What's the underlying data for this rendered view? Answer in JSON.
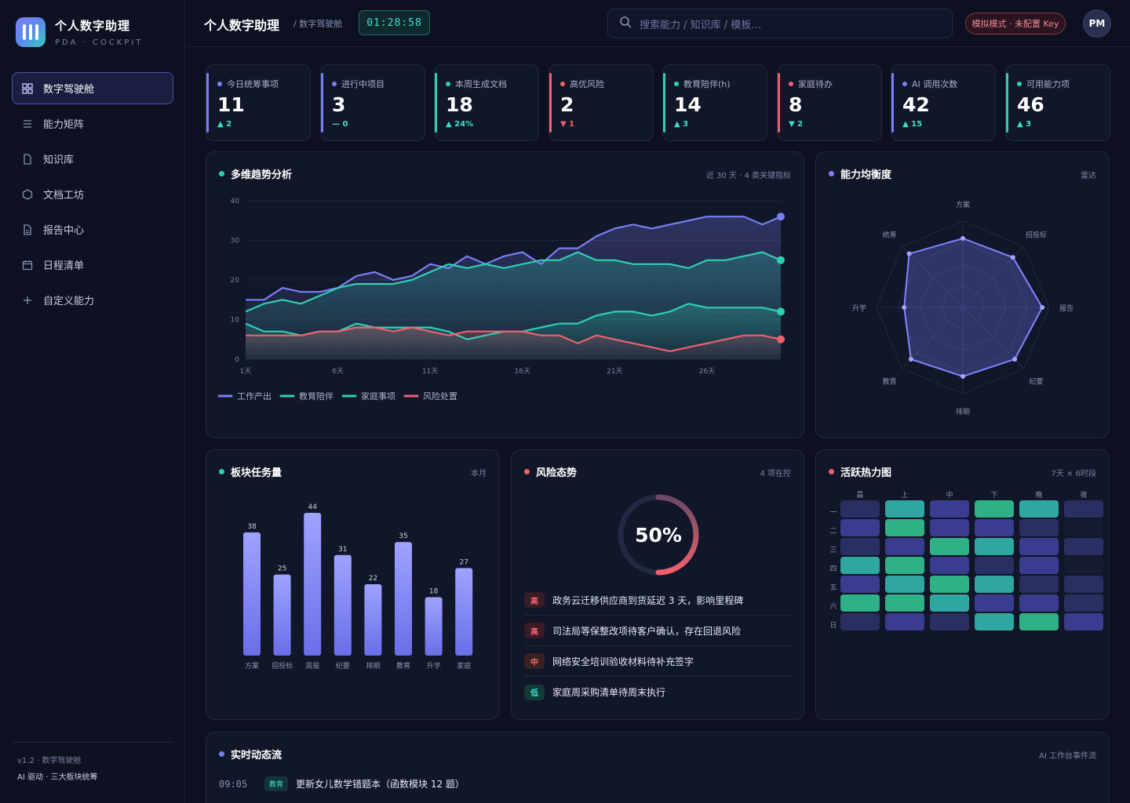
{
  "brand": {
    "name": "个人数字助理",
    "sub": "PDA · COCKPIT"
  },
  "nav": [
    {
      "label": "数字驾驶舱",
      "icon": "grid-icon",
      "active": true
    },
    {
      "label": "能力矩阵",
      "icon": "list-icon"
    },
    {
      "label": "知识库",
      "icon": "file-icon"
    },
    {
      "label": "文档工坊",
      "icon": "hexagon-icon"
    },
    {
      "label": "报告中心",
      "icon": "report-icon"
    },
    {
      "label": "日程清单",
      "icon": "calendar-icon"
    },
    {
      "label": "自定义能力",
      "icon": "plus-icon"
    }
  ],
  "footer": {
    "version": "v1.2 · 数字驾驶舱",
    "desc": "AI 驱动 · 三大板块统筹"
  },
  "topbar": {
    "title": "个人数字助理",
    "crumb": "/ 数字驾驶舱",
    "clock": "01:28:58",
    "search_placeholder": "搜索能力 / 知识库 / 模板…",
    "mode": "模拟模式 · 未配置 Key",
    "avatar": "PM"
  },
  "stats": [
    {
      "label": "今日统筹事项",
      "value": "11",
      "delta": "▲ 2",
      "color": "#7b7ff5",
      "delta_color": "#3ee0c6"
    },
    {
      "label": "进行中项目",
      "value": "3",
      "delta": "— 0",
      "color": "#7b7ff5",
      "delta_color": "#3ee0c6"
    },
    {
      "label": "本周生成文档",
      "value": "18",
      "delta": "▲ 24%",
      "color": "#2fd0b0",
      "delta_color": "#3ee0c6"
    },
    {
      "label": "高优风险",
      "value": "2",
      "delta": "▼ 1",
      "color": "#f0606f",
      "delta_color": "#f0606f"
    },
    {
      "label": "教育陪伴(h)",
      "value": "14",
      "delta": "▲ 3",
      "color": "#2fd0b0",
      "delta_color": "#3ee0c6"
    },
    {
      "label": "家庭待办",
      "value": "8",
      "delta": "▼ 2",
      "color": "#f0606f",
      "delta_color": "#3ee0c6"
    },
    {
      "label": "AI 调用次数",
      "value": "42",
      "delta": "▲ 15",
      "color": "#7b7ff5",
      "delta_color": "#3ee0c6"
    },
    {
      "label": "可用能力项",
      "value": "46",
      "delta": "▲ 3",
      "color": "#2fd0b0",
      "delta_color": "#3ee0c6"
    }
  ],
  "trend": {
    "title": "多维趋势分析",
    "meta": "近 30 天 · 4 类关键指标"
  },
  "radar": {
    "title": "能力均衡度",
    "meta": "雷达"
  },
  "bars": {
    "title": "板块任务量",
    "meta": "本月"
  },
  "risk": {
    "title": "风险态势",
    "meta": "4 项在控",
    "percent_label": "50%",
    "percent": 0.5,
    "items": [
      {
        "level": "高",
        "text": "政务云迁移供应商到货延迟 3 天，影响里程碑",
        "color": "#f0606f",
        "bg": "#3a1c26"
      },
      {
        "level": "高",
        "text": "司法局等保整改项待客户确认，存在回退风险",
        "color": "#f0606f",
        "bg": "#3a1c26"
      },
      {
        "level": "中",
        "text": "网络安全培训验收材料待补充签字",
        "color": "#f07060",
        "bg": "#3a2020"
      },
      {
        "level": "低",
        "text": "家庭周采购清单待周末执行",
        "color": "#3ee0c6",
        "bg": "#123a38"
      }
    ]
  },
  "heat": {
    "title": "活跃热力图",
    "meta": "7天 × 6时段",
    "cols": [
      "晨",
      "上",
      "中",
      "下",
      "晚",
      "夜"
    ],
    "rows": [
      "一",
      "二",
      "三",
      "四",
      "五",
      "六",
      "日"
    ],
    "values": [
      [
        1,
        3,
        2,
        4,
        3,
        1
      ],
      [
        2,
        4,
        2,
        2,
        1,
        0
      ],
      [
        1,
        2,
        4,
        3,
        2,
        1
      ],
      [
        3,
        4,
        2,
        1,
        2,
        0
      ],
      [
        2,
        3,
        4,
        3,
        1,
        1
      ],
      [
        4,
        4,
        3,
        2,
        2,
        1
      ],
      [
        1,
        2,
        1,
        3,
        4,
        2
      ]
    ],
    "colors": [
      "#151b30",
      "#2a2f63",
      "#3a3d8f",
      "#2fa7a0",
      "#2fb086"
    ]
  },
  "feed": {
    "title": "实时动态流",
    "meta": "AI 工作台事件流",
    "items": [
      {
        "time": "09:05",
        "tag": "教育",
        "text": "更新女儿数学错题本（函数模块 12 题）"
      }
    ]
  },
  "chart_data": [
    {
      "type": "line",
      "ylim": [
        0,
        40
      ],
      "yticks": [
        0,
        10,
        20,
        30,
        40
      ],
      "x": [
        1,
        2,
        3,
        4,
        5,
        6,
        7,
        8,
        9,
        10,
        11,
        12,
        13,
        14,
        15,
        16,
        17,
        18,
        19,
        20,
        21,
        22,
        23,
        24,
        25,
        26,
        27,
        28,
        29,
        30
      ],
      "xtick_labels": [
        {
          "x": 1,
          "label": "1天"
        },
        {
          "x": 6,
          "label": "6天"
        },
        {
          "x": 11,
          "label": "11天"
        },
        {
          "x": 16,
          "label": "16天"
        },
        {
          "x": 21,
          "label": "21天"
        },
        {
          "x": 26,
          "label": "26天"
        }
      ],
      "series": [
        {
          "name": "工作产出",
          "color": "#7b7ff5",
          "values": [
            15,
            15,
            18,
            17,
            17,
            18,
            21,
            22,
            20,
            21,
            24,
            23,
            26,
            24,
            26,
            27,
            24,
            28,
            28,
            31,
            33,
            34,
            33,
            34,
            35,
            36,
            36,
            36,
            34,
            36
          ]
        },
        {
          "name": "教育陪伴",
          "color": "#2fd0b0",
          "values": [
            12,
            14,
            15,
            14,
            16,
            18,
            19,
            19,
            19,
            20,
            22,
            24,
            23,
            24,
            23,
            24,
            25,
            25,
            27,
            25,
            25,
            24,
            24,
            24,
            23,
            25,
            25,
            26,
            27,
            25
          ]
        },
        {
          "name": "家庭事项",
          "color": "#2fd0b0",
          "values": [
            9,
            7,
            7,
            6,
            7,
            7,
            9,
            8,
            8,
            8,
            8,
            7,
            5,
            6,
            7,
            7,
            8,
            9,
            9,
            11,
            12,
            12,
            11,
            12,
            14,
            13,
            13,
            13,
            13,
            12
          ]
        },
        {
          "name": "风险处置",
          "color": "#f0606f",
          "values": [
            6,
            6,
            6,
            6,
            7,
            7,
            8,
            8,
            7,
            8,
            7,
            6,
            7,
            7,
            7,
            7,
            6,
            6,
            4,
            6,
            5,
            4,
            3,
            2,
            3,
            4,
            5,
            6,
            6,
            5
          ]
        }
      ]
    },
    {
      "type": "radar",
      "axes": [
        "方案",
        "招投标",
        "报告",
        "纪要",
        "排期",
        "教育",
        "升学",
        "统筹"
      ],
      "range": [
        0,
        100
      ],
      "values": [
        80,
        82,
        92,
        85,
        80,
        85,
        68,
        88
      ]
    },
    {
      "type": "bar",
      "categories": [
        "方案",
        "招投标",
        "周报",
        "纪要",
        "排期",
        "教育",
        "升学",
        "家庭"
      ],
      "values": [
        38,
        25,
        44,
        31,
        22,
        35,
        18,
        27
      ],
      "ylim": [
        0,
        44
      ]
    }
  ]
}
